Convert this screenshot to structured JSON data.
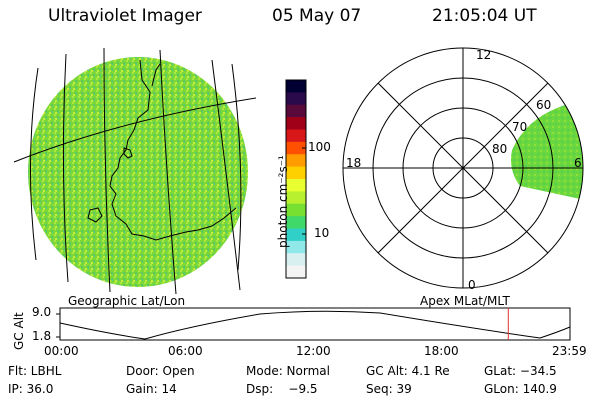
{
  "header": {
    "instrument": "Ultraviolet Imager",
    "date": "05 May 07",
    "time": "21:05:04 UT"
  },
  "panels": {
    "geo_label": "Geographic Lat/Lon",
    "apex_label": "Apex MLat/MLT"
  },
  "colorbar": {
    "unit_label": "photon cm⁻²s⁻¹",
    "ticks": [
      {
        "label": "100",
        "value": 100
      },
      {
        "label": "10",
        "value": 10
      }
    ],
    "colors": [
      "#000033",
      "#2a0a4a",
      "#5a0a3a",
      "#a00018",
      "#d81818",
      "#ff5000",
      "#ff9c00",
      "#ffd000",
      "#e8ff30",
      "#b8f030",
      "#78e030",
      "#40d868",
      "#30d0c8",
      "#90e8e8",
      "#d8f0f0",
      "#f4f4f4"
    ]
  },
  "polar": {
    "mlt_labels": {
      "top": "12",
      "left": "18",
      "right": "6",
      "bottom": "0"
    },
    "lat_labels": [
      "60",
      "70",
      "80"
    ],
    "emission_color": "#6ad83c"
  },
  "timeline": {
    "axis_label": "GC Alt",
    "y_ticks": [
      "9.0",
      "1.8"
    ],
    "x_ticks": [
      "00:00",
      "06:00",
      "12:00",
      "18:00",
      "23:59"
    ],
    "current_time_fraction": 0.879,
    "marker_color": "#e03030"
  },
  "info": {
    "row1": {
      "flt": "Flt: LBHL",
      "door": "Door: Open",
      "mode": "Mode: Normal",
      "gc_alt": "GC Alt: 4.1 Re",
      "glat": "GLat: −34.5"
    },
    "row2": {
      "ip": "IP: 36.0",
      "gain": "Gain: 14",
      "dsp": "Dsp:    −9.5",
      "seq": "Seq: 39",
      "glon": "GLon: 140.9"
    }
  }
}
